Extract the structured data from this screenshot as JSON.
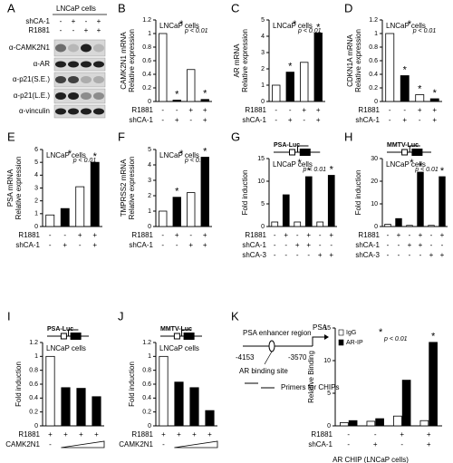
{
  "western_blot": {
    "panel": "A",
    "title": "LNCaP cells",
    "conditions": [
      {
        "label": "shCA-1",
        "signs": [
          "-",
          "+",
          "-",
          "+"
        ]
      },
      {
        "label": "R1881",
        "signs": [
          "-",
          "-",
          "+",
          "+"
        ]
      }
    ],
    "rows": [
      "α-CAMK2N1",
      "α-AR",
      "α-p21(S.E.)",
      "α-p21(L.E.)",
      "α-vinculin"
    ]
  },
  "chart_data": [
    {
      "type": "bar",
      "panel": "B",
      "title": "LNCaP cells",
      "ylabel": [
        "CAMK2N1 mRNA",
        "Relative expression"
      ],
      "ylim": [
        0,
        1.2
      ],
      "yticks": [
        0,
        0.2,
        0.4,
        0.6,
        0.8,
        1,
        1.2
      ],
      "values": [
        1,
        0.02,
        0.47,
        0.03
      ],
      "colors": [
        "#ffffff",
        "#000000",
        "#ffffff",
        "#000000"
      ],
      "bar_marks": [
        null,
        "*",
        null,
        "*"
      ],
      "significance": {
        "symbol": "*",
        "label": "p < 0.01"
      },
      "conditions": [
        {
          "label": "R1881",
          "signs": [
            "-",
            "-",
            "+",
            "+"
          ]
        },
        {
          "label": "shCA-1",
          "signs": [
            "-",
            "+",
            "-",
            "+"
          ]
        }
      ]
    },
    {
      "type": "bar",
      "panel": "C",
      "title": "LNCaP cells",
      "ylabel": [
        "AR mRNA",
        "Relative expression"
      ],
      "ylim": [
        0,
        5
      ],
      "yticks": [
        0,
        1,
        2,
        3,
        4,
        5
      ],
      "values": [
        1,
        1.8,
        2.4,
        4.2
      ],
      "colors": [
        "#ffffff",
        "#000000",
        "#ffffff",
        "#000000"
      ],
      "bar_marks": [
        null,
        "*",
        null,
        "*"
      ],
      "significance": {
        "symbol": "*",
        "label": "p < 0.01"
      },
      "conditions": [
        {
          "label": "R1881",
          "signs": [
            "-",
            "-",
            "+",
            "+"
          ]
        },
        {
          "label": "shCA-1",
          "signs": [
            "-",
            "+",
            "-",
            "+"
          ]
        }
      ]
    },
    {
      "type": "bar",
      "panel": "D",
      "title": "LNCaP cells",
      "ylabel": [
        "CDKN1A mRNA",
        "Relative expression"
      ],
      "ylim": [
        0,
        1.2
      ],
      "yticks": [
        0,
        0.2,
        0.4,
        0.6,
        0.8,
        1,
        1.2
      ],
      "values": [
        1,
        0.38,
        0.1,
        0.04
      ],
      "colors": [
        "#ffffff",
        "#000000",
        "#ffffff",
        "#000000"
      ],
      "bar_marks": [
        null,
        "*",
        "*",
        "*"
      ],
      "significance": {
        "symbol": "*",
        "label": "p < 0.01"
      },
      "conditions": [
        {
          "label": "R1881",
          "signs": [
            "-",
            "-",
            "+",
            "+"
          ]
        },
        {
          "label": "shCA-1",
          "signs": [
            "-",
            "+",
            "-",
            "+"
          ]
        }
      ]
    },
    {
      "type": "bar",
      "panel": "E",
      "title": "LNCaP cells",
      "ylabel": [
        "PSA  mRNA",
        "Relative expression"
      ],
      "ylim": [
        0,
        6
      ],
      "yticks": [
        0,
        1,
        2,
        3,
        4,
        5,
        6
      ],
      "values": [
        0.9,
        1.4,
        3.1,
        5
      ],
      "colors": [
        "#ffffff",
        "#000000",
        "#ffffff",
        "#000000"
      ],
      "bar_marks": [
        null,
        null,
        null,
        "*"
      ],
      "significance": {
        "symbol": "*",
        "label": "p < 0.01"
      },
      "conditions": [
        {
          "label": "R1881",
          "signs": [
            "-",
            "-",
            "+",
            "+"
          ]
        },
        {
          "label": "shCA-1",
          "signs": [
            "-",
            "+",
            "-",
            "+"
          ]
        }
      ]
    },
    {
      "type": "bar",
      "panel": "F",
      "title": "LNCaP cells",
      "ylabel": [
        "TMPRSS2 mRNA",
        "Relative expression"
      ],
      "ylim": [
        0,
        5
      ],
      "yticks": [
        0,
        1,
        2,
        3,
        4,
        5
      ],
      "values": [
        1,
        1.9,
        2.2,
        4.5
      ],
      "colors": [
        "#ffffff",
        "#000000",
        "#ffffff",
        "#000000"
      ],
      "bar_marks": [
        null,
        "*",
        null,
        "*"
      ],
      "significance": {
        "symbol": "*",
        "label": "p < 0.01"
      },
      "conditions": [
        {
          "label": "R1881",
          "signs": [
            "-",
            "+",
            "-",
            "+"
          ]
        },
        {
          "label": "shCA-1",
          "signs": [
            "-",
            "-",
            "+",
            "+"
          ]
        }
      ]
    },
    {
      "type": "bar",
      "panel": "G",
      "title": "LNCaP cells",
      "construct": "PSA-Luc",
      "ylabel": [
        "Fold induction"
      ],
      "ylim": [
        0,
        15
      ],
      "yticks": [
        0,
        5,
        10,
        15
      ],
      "values": [
        1,
        7,
        1,
        11,
        1,
        11.3
      ],
      "colors": [
        "#ffffff",
        "#000000",
        "#ffffff",
        "#000000",
        "#ffffff",
        "#000000"
      ],
      "bar_marks": [
        null,
        null,
        null,
        "*",
        null,
        "*"
      ],
      "significance": {
        "symbol": "*",
        "label": "p < 0.01"
      },
      "conditions": [
        {
          "label": "R1881",
          "signs": [
            "-",
            "+",
            "-",
            "+",
            "-",
            "+"
          ]
        },
        {
          "label": "shCA-1",
          "signs": [
            "-",
            "-",
            "+",
            "+",
            "-",
            "-"
          ]
        },
        {
          "label": "shCA-3",
          "signs": [
            "-",
            "-",
            "-",
            "-",
            "+",
            "+"
          ]
        }
      ]
    },
    {
      "type": "bar",
      "panel": "H",
      "title": "LNCaP cells",
      "construct": "MMTV-Luc",
      "ylabel": [
        "Fold induction"
      ],
      "ylim": [
        0,
        30
      ],
      "yticks": [
        0,
        10,
        20,
        30
      ],
      "values": [
        1,
        3.5,
        0.5,
        24,
        0.5,
        22
      ],
      "colors": [
        "#ffffff",
        "#000000",
        "#ffffff",
        "#000000",
        "#ffffff",
        "#000000"
      ],
      "bar_marks": [
        null,
        null,
        null,
        "*",
        null,
        "*"
      ],
      "significance": {
        "symbol": "*",
        "label": "p < 0.01"
      },
      "conditions": [
        {
          "label": "R1881",
          "signs": [
            "-",
            "+",
            "-",
            "+",
            "-",
            "+"
          ]
        },
        {
          "label": "shCA-1",
          "signs": [
            "-",
            "-",
            "+",
            "+",
            "-",
            "-"
          ]
        },
        {
          "label": "shCA-3",
          "signs": [
            "-",
            "-",
            "-",
            "-",
            "+",
            "+"
          ]
        }
      ]
    },
    {
      "type": "bar",
      "panel": "I",
      "title": "LNCaP cells",
      "construct": "PSA-Luc",
      "ylabel": [
        "Fold induction"
      ],
      "ylim": [
        0,
        1.2
      ],
      "yticks": [
        0,
        0.2,
        0.4,
        0.6,
        0.8,
        1,
        1.2
      ],
      "values": [
        1,
        0.55,
        0.54,
        0.42
      ],
      "colors": [
        "#ffffff",
        "#000000",
        "#000000",
        "#000000"
      ],
      "ramp": true,
      "conditions": [
        {
          "label": "R1881",
          "signs": [
            "+",
            "+",
            "+",
            "+"
          ]
        },
        {
          "label": "CAMK2N1",
          "signs": [
            "-",
            null,
            null,
            null
          ]
        }
      ]
    },
    {
      "type": "bar",
      "panel": "J",
      "title": "LNCaP cells",
      "construct": "MMTV-Luc",
      "ylabel": [
        "Fold induction"
      ],
      "ylim": [
        0,
        1.2
      ],
      "yticks": [
        0,
        0.2,
        0.4,
        0.6,
        0.8,
        1,
        1.2
      ],
      "values": [
        1,
        0.63,
        0.55,
        0.22
      ],
      "colors": [
        "#ffffff",
        "#000000",
        "#000000",
        "#000000"
      ],
      "ramp": true,
      "conditions": [
        {
          "label": "R1881",
          "signs": [
            "+",
            "+",
            "+",
            "+"
          ]
        },
        {
          "label": "CAMK2N1",
          "signs": [
            "-",
            null,
            null,
            null
          ]
        }
      ]
    },
    {
      "type": "bar",
      "panel": "K",
      "ylabel": [
        "Relative Binding"
      ],
      "xlabel": "AR CHIP  (LNCaP cells)",
      "ylim": [
        0,
        15
      ],
      "yticks": [
        0,
        5,
        10,
        15
      ],
      "series": [
        {
          "name": "IgG",
          "color": "#ffffff",
          "values": [
            0.5,
            0.7,
            1.5,
            0.8
          ]
        },
        {
          "name": "AR-IP",
          "color": "#000000",
          "values": [
            0.8,
            1.1,
            7,
            12.8
          ],
          "bar_marks": [
            null,
            null,
            null,
            "*"
          ]
        }
      ],
      "significance": {
        "symbol": "*",
        "label": "p < 0.01"
      },
      "conditions": [
        {
          "label": "R1881",
          "signs": [
            "-",
            "-",
            "+",
            "+"
          ]
        },
        {
          "label": "shCA-1",
          "signs": [
            "-",
            "+",
            "-",
            "+"
          ]
        }
      ]
    }
  ],
  "diagram": {
    "region": "PSA enhancer region",
    "gene": "PSA",
    "start": "-4153",
    "end": "-3570",
    "site": "AR binding site",
    "primers": "Primers for CHIPs"
  }
}
